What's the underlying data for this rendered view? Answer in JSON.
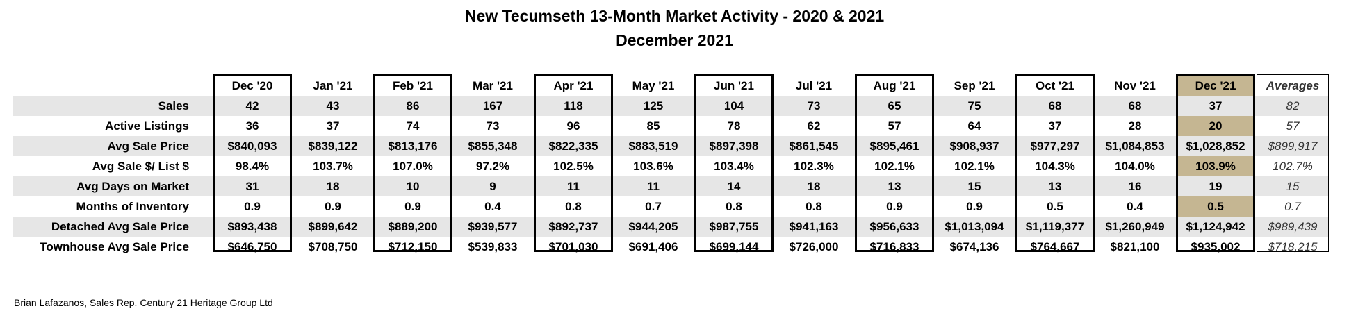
{
  "title": "New Tecumseth 13-Month Market Activity - 2020 & 2021",
  "subtitle": "December 2021",
  "columns": [
    "Dec '20",
    "Jan '21",
    "Feb '21",
    "Mar '21",
    "Apr '21",
    "May '21",
    "Jun '21",
    "Jul '21",
    "Aug '21",
    "Sep '21",
    "Oct '21",
    "Nov '21",
    "Dec '21",
    "Averages"
  ],
  "rows": [
    {
      "label": "Sales",
      "values": [
        "42",
        "43",
        "86",
        "167",
        "118",
        "125",
        "104",
        "73",
        "65",
        "75",
        "68",
        "68",
        "37",
        "82"
      ]
    },
    {
      "label": "Active Listings",
      "values": [
        "36",
        "37",
        "74",
        "73",
        "96",
        "85",
        "78",
        "62",
        "57",
        "64",
        "37",
        "28",
        "20",
        "57"
      ]
    },
    {
      "label": "Avg Sale Price",
      "values": [
        "$840,093",
        "$839,122",
        "$813,176",
        "$855,348",
        "$822,335",
        "$883,519",
        "$897,398",
        "$861,545",
        "$895,461",
        "$908,937",
        "$977,297",
        "$1,084,853",
        "$1,028,852",
        "$899,917"
      ]
    },
    {
      "label": "Avg Sale $/ List $",
      "values": [
        "98.4%",
        "103.7%",
        "107.0%",
        "97.2%",
        "102.5%",
        "103.6%",
        "103.4%",
        "102.3%",
        "102.1%",
        "102.1%",
        "104.3%",
        "104.0%",
        "103.9%",
        "102.7%"
      ]
    },
    {
      "label": "Avg Days on Market",
      "values": [
        "31",
        "18",
        "10",
        "9",
        "11",
        "11",
        "14",
        "18",
        "13",
        "15",
        "13",
        "16",
        "19",
        "15"
      ]
    },
    {
      "label": "Months of Inventory",
      "values": [
        "0.9",
        "0.9",
        "0.9",
        "0.4",
        "0.8",
        "0.7",
        "0.8",
        "0.8",
        "0.9",
        "0.9",
        "0.5",
        "0.4",
        "0.5",
        "0.7"
      ]
    },
    {
      "label": "Detached Avg Sale Price",
      "values": [
        "$893,438",
        "$899,642",
        "$889,200",
        "$939,577",
        "$892,737",
        "$944,205",
        "$987,755",
        "$941,163",
        "$956,633",
        "$1,013,094",
        "$1,119,377",
        "$1,260,949",
        "$1,124,942",
        "$989,439"
      ]
    },
    {
      "label": "Townhouse Avg Sale Price",
      "values": [
        "$646,750",
        "$708,750",
        "$712,150",
        "$539,833",
        "$701,030",
        "$691,406",
        "$699,144",
        "$726,000",
        "$716,833",
        "$674,136",
        "$764,667",
        "$821,100",
        "$935,002",
        "$718,215"
      ]
    }
  ],
  "highlight_color": "#c5b692",
  "band_color": "#e6e6e6",
  "footer": "Brian Lafazanos, Sales Rep. Century 21 Heritage Group Ltd"
}
